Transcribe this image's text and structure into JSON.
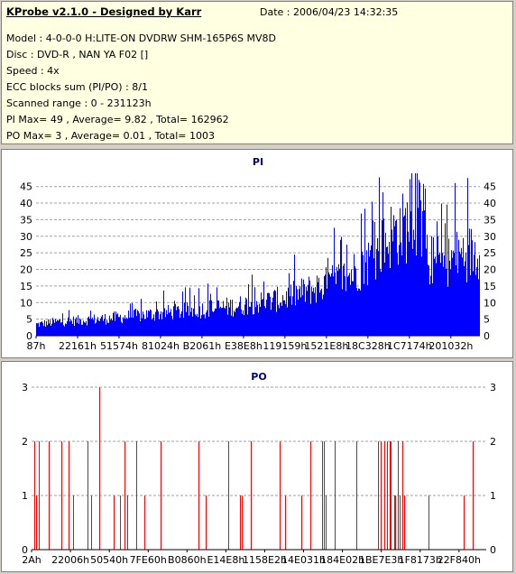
{
  "header": {
    "app_title": "KProbe v2.1.0 - Designed by Karr",
    "date": "Date : 2006/04/23 14:32:35",
    "lines": [
      "Model : 4-0-0-0 H:LITE-ON DVDRW SHM-165P6S MV8D",
      "Disc : DVD-R , NAN YA F02 []",
      "Speed : 4x",
      "ECC blocks sum (PI/PO) : 8/1",
      "Scanned range : 0 - 231123h",
      "PI Max= 49 , Average= 9.82 , Total= 162962",
      "PO Max= 3 , Average= 0.01 , Total= 1003"
    ]
  },
  "colors": {
    "pi": "#0000ff",
    "po": "#ff0000",
    "grid": "#a0a0a0"
  },
  "chart_data": [
    {
      "type": "bar",
      "title": "PI",
      "ylim": [
        0,
        49
      ],
      "yticks": [
        0,
        5,
        10,
        15,
        20,
        25,
        30,
        35,
        40,
        45
      ],
      "xticks": [
        "87h",
        "22161h",
        "51574h",
        "81024h",
        "B2061h",
        "E38E8h",
        "119159h",
        "1521E8h",
        "18C328h",
        "1C7174h",
        "201032h"
      ],
      "grid": true,
      "profile": [
        [
          0,
          4
        ],
        [
          0.05,
          5
        ],
        [
          0.15,
          6
        ],
        [
          0.25,
          7.5
        ],
        [
          0.35,
          9
        ],
        [
          0.45,
          10.5
        ],
        [
          0.55,
          13
        ],
        [
          0.63,
          17
        ],
        [
          0.7,
          21
        ],
        [
          0.76,
          28
        ],
        [
          0.8,
          36
        ],
        [
          0.86,
          41
        ],
        [
          0.876,
          41
        ],
        [
          0.88,
          27
        ],
        [
          0.92,
          26
        ],
        [
          0.96,
          29
        ],
        [
          1,
          30
        ]
      ],
      "max": 49
    },
    {
      "type": "bar",
      "title": "PO",
      "ylim": [
        0,
        3
      ],
      "yticks": [
        0,
        1,
        2,
        3
      ],
      "xticks": [
        "2Ah",
        "22006h",
        "50540h",
        "7FE60h",
        "B0860h",
        "E14E8h",
        "1158E2h",
        "14E031h",
        "184E02h",
        "1BE7E3h",
        "1F8173h",
        "22F840h"
      ],
      "grid": true,
      "max": 3
    }
  ]
}
